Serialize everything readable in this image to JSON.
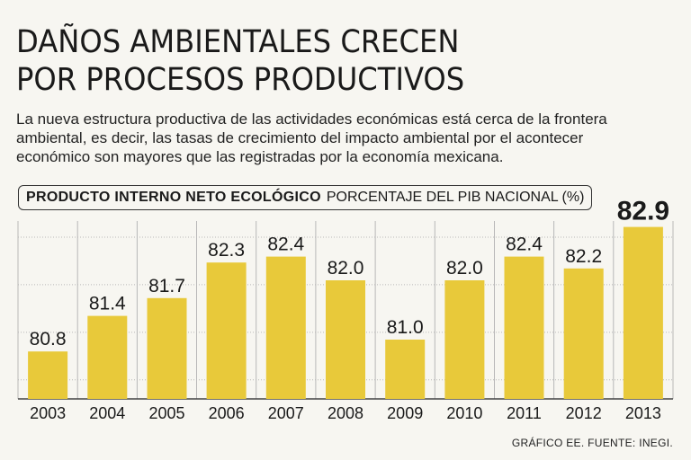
{
  "header": {
    "title_line1": "DAÑOS AMBIENTALES CRECEN",
    "title_line2": "POR PROCESOS PRODUCTIVOS",
    "subtitle_line1": "La nueva estructura productiva de las actividades económicas está cerca de la frontera",
    "subtitle_line2": "ambiental, es decir, las tasas de crecimiento del impacto ambiental por el acontecer",
    "subtitle_line3": "económico son mayores que las registradas por la economía mexicana."
  },
  "chart_label": {
    "bold": "PRODUCTO INTERNO NETO ECOLÓGICO",
    "normal": "PORCENTAJE DEL PIB NACIONAL (%)"
  },
  "source": "GRÁFICO EE. FUENTE: INEGI.",
  "colors": {
    "bar": "#e8c93a",
    "grid": "#b8b8b8",
    "text": "#1a1a1a"
  },
  "chart_data": {
    "type": "bar",
    "title": "PRODUCTO INTERNO NETO ECOLÓGICO",
    "ylabel": "PORCENTAJE DEL PIB NACIONAL (%)",
    "categories": [
      "2003",
      "2004",
      "2005",
      "2006",
      "2007",
      "2008",
      "2009",
      "2010",
      "2011",
      "2012",
      "2013"
    ],
    "values": [
      80.8,
      81.4,
      81.7,
      82.3,
      82.4,
      82.0,
      81.0,
      82.0,
      82.4,
      82.2,
      82.9
    ],
    "labels": [
      "80.8",
      "81.4",
      "81.7",
      "82.3",
      "82.4",
      "82.0",
      "81.0",
      "82.0",
      "82.4",
      "82.2",
      "82.9"
    ],
    "highlight": "2013",
    "ylim": [
      80.0,
      83.0
    ],
    "grid": true,
    "legend": "none"
  }
}
